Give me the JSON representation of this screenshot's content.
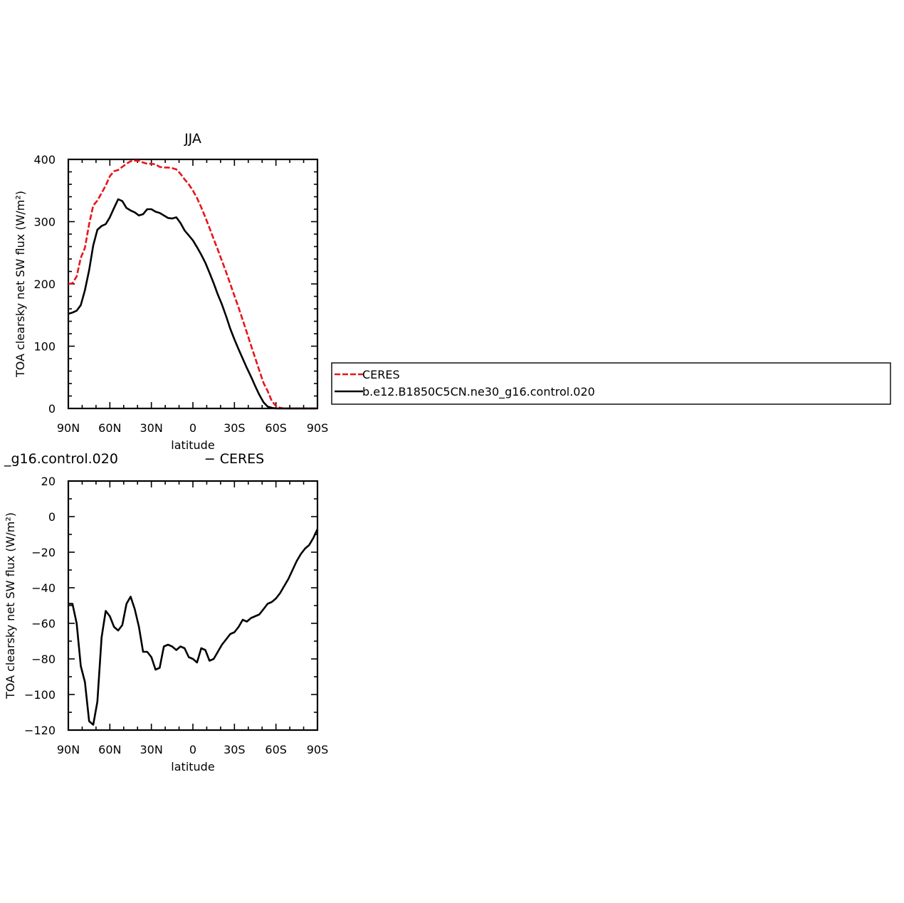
{
  "chart_data": [
    {
      "type": "line",
      "title": "JJA",
      "xlabel": "latitude",
      "ylabel": "TOA clearsky net SW flux (W/m²)",
      "xlim": [
        90,
        -90
      ],
      "ylim": [
        0,
        400
      ],
      "xticks": [
        90,
        60,
        30,
        0,
        -30,
        -60,
        -90
      ],
      "xtick_labels": [
        "90N",
        "60N",
        "30N",
        "0",
        "30S",
        "60S",
        "90S"
      ],
      "yticks": [
        0,
        100,
        200,
        300,
        400
      ],
      "ytick_labels": [
        "0",
        "100",
        "200",
        "300",
        "400"
      ],
      "legend": {
        "placement": "right",
        "entries": [
          "CERES",
          "b.e12.B1850C5CN.ne30_g16.control.020"
        ]
      },
      "series": [
        {
          "name": "CERES",
          "color": "#e8141a",
          "dash": "dashed",
          "x": [
            90,
            87,
            84,
            81,
            78,
            75,
            72,
            69,
            66,
            63,
            60,
            57,
            54,
            51,
            48,
            45,
            42,
            39,
            36,
            33,
            30,
            27,
            24,
            21,
            18,
            15,
            12,
            9,
            6,
            3,
            0,
            -3,
            -6,
            -9,
            -12,
            -15,
            -18,
            -21,
            -24,
            -27,
            -30,
            -33,
            -36,
            -39,
            -42,
            -45,
            -48,
            -51,
            -54,
            -57,
            -60,
            -63,
            -66,
            -69,
            -72,
            -75,
            -78,
            -81,
            -84,
            -87,
            -90
          ],
          "y": [
            200,
            201,
            212,
            242,
            258,
            296,
            326,
            334,
            346,
            358,
            373,
            381,
            383,
            388,
            393,
            397,
            398,
            398,
            395,
            393,
            393,
            392,
            388,
            387,
            387,
            386,
            384,
            377,
            368,
            360,
            350,
            338,
            323,
            307,
            290,
            272,
            255,
            237,
            219,
            200,
            181,
            162,
            142,
            122,
            101,
            81,
            61,
            41,
            28,
            12,
            4,
            1,
            0,
            0,
            0,
            0,
            0,
            0,
            0,
            0,
            0
          ]
        },
        {
          "name": "b.e12.B1850C5CN.ne30_g16.control.020",
          "color": "#000000",
          "dash": "solid",
          "x": [
            90,
            87,
            84,
            81,
            78,
            75,
            72,
            69,
            66,
            63,
            60,
            57,
            54,
            51,
            48,
            45,
            42,
            39,
            36,
            33,
            30,
            27,
            24,
            21,
            18,
            15,
            12,
            9,
            6,
            3,
            0,
            -3,
            -6,
            -9,
            -12,
            -15,
            -18,
            -21,
            -24,
            -27,
            -30,
            -33,
            -36,
            -39,
            -42,
            -45,
            -48,
            -51,
            -54,
            -57,
            -60,
            -63,
            -66,
            -69,
            -72,
            -75,
            -78,
            -81,
            -84,
            -87,
            -90
          ],
          "y": [
            152,
            154,
            157,
            166,
            190,
            222,
            262,
            287,
            293,
            296,
            307,
            322,
            336,
            333,
            322,
            318,
            315,
            310,
            312,
            320,
            320,
            316,
            314,
            310,
            306,
            305,
            307,
            298,
            286,
            278,
            270,
            259,
            247,
            234,
            218,
            201,
            183,
            167,
            148,
            128,
            111,
            95,
            80,
            65,
            51,
            36,
            22,
            10,
            3,
            1,
            0,
            0,
            0,
            0,
            0,
            0,
            0,
            0,
            0,
            0,
            0
          ]
        }
      ]
    },
    {
      "type": "line",
      "title": "_g16.control.020                    − CERES",
      "xlabel": "latitude",
      "ylabel": "TOA clearsky net SW flux (W/m²)",
      "xlim": [
        90,
        -90
      ],
      "ylim": [
        -120,
        20
      ],
      "xticks": [
        90,
        60,
        30,
        0,
        -30,
        -60,
        -90
      ],
      "xtick_labels": [
        "90N",
        "60N",
        "30N",
        "0",
        "30S",
        "60S",
        "90S"
      ],
      "yticks": [
        -120,
        -100,
        -80,
        -60,
        -40,
        -20,
        0,
        20
      ],
      "ytick_labels": [
        "−120",
        "−100",
        "−80",
        "−60",
        "−40",
        "−20",
        "0",
        "20"
      ],
      "series": [
        {
          "color": "#000000",
          "dash": "solid",
          "x": [
            90,
            87,
            84,
            81,
            78,
            75,
            72,
            69,
            66,
            63,
            60,
            57,
            54,
            51,
            48,
            45,
            42,
            39,
            36,
            33,
            30,
            27,
            24,
            21,
            18,
            15,
            12,
            9,
            6,
            3,
            0,
            -3,
            -6,
            -9,
            -12,
            -15,
            -18,
            -21,
            -24,
            -27,
            -30,
            -33,
            -36,
            -39,
            -42,
            -45,
            -48,
            -51,
            -54,
            -57,
            -60,
            -63,
            -66,
            -69,
            -72,
            -75,
            -78,
            -81,
            -84,
            -87,
            -90
          ],
          "y": [
            -49,
            -49,
            -60,
            -84,
            -93,
            -115,
            -117,
            -104,
            -68,
            -53,
            -56,
            -62,
            -64,
            -61,
            -49,
            -45,
            -52,
            -62,
            -76,
            -76,
            -79,
            -86,
            -85,
            -73,
            -72,
            -73,
            -75,
            -73,
            -74,
            -79,
            -80,
            -82,
            -74,
            -75,
            -81,
            -80,
            -76,
            -72,
            -69,
            -66,
            -65,
            -62,
            -58,
            -59,
            -57,
            -56,
            -55,
            -52,
            -49,
            -48,
            -46,
            -43,
            -39,
            -35,
            -30,
            -25,
            -21,
            -18,
            -16,
            -12,
            -7
          ]
        }
      ]
    }
  ]
}
